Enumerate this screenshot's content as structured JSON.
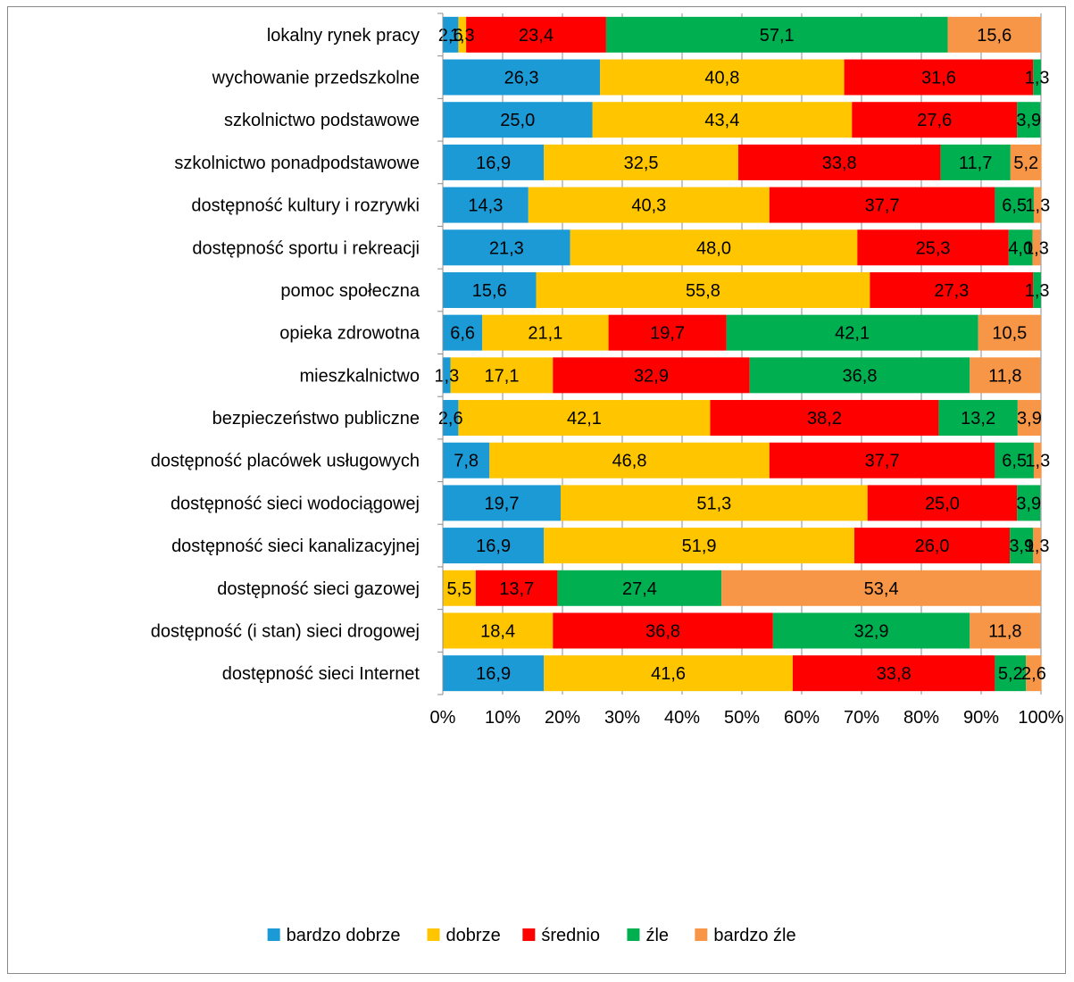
{
  "chart_data": {
    "type": "bar",
    "orientation": "horizontal",
    "stacked": true,
    "percent_stacked": true,
    "categories": [
      "lokalny rynek pracy",
      "wychowanie przedszkolne",
      "szkolnictwo podstawowe",
      "szkolnictwo ponadpodstawowe",
      "dostępność kultury i rozrywki",
      "dostępność sportu i rekreacji",
      "pomoc społeczna",
      "opieka zdrowotna",
      "mieszkalnictwo",
      "bezpieczeństwo publiczne",
      "dostępność placówek usługowych",
      "dostępność sieci wodociągowej",
      "dostępność sieci kanalizacyjnej",
      "dostępność sieci gazowej",
      "dostępność (i stan) sieci drogowej",
      "dostępność sieci Internet"
    ],
    "series": [
      {
        "name": "bardzo dobrze",
        "color": "#1b9ad6",
        "values": [
          2.6,
          26.3,
          25.0,
          16.9,
          14.3,
          21.3,
          15.6,
          6.6,
          1.3,
          2.6,
          7.8,
          19.7,
          16.9,
          0,
          0,
          16.9
        ],
        "labels": [
          "2,6",
          "26,3",
          "25,0",
          "16,9",
          "14,3",
          "21,3",
          "15,6",
          "6,6",
          "1,3",
          "2,6",
          "7,8",
          "19,7",
          "16,9",
          "",
          "",
          "16,9"
        ]
      },
      {
        "name": "dobrze",
        "color": "#ffc600",
        "values": [
          1.3,
          40.8,
          43.4,
          32.5,
          40.3,
          48.0,
          55.8,
          21.1,
          17.1,
          42.1,
          46.8,
          51.3,
          51.9,
          5.5,
          18.4,
          41.6
        ],
        "labels": [
          "1,3",
          "40,8",
          "43,4",
          "32,5",
          "40,3",
          "48,0",
          "55,8",
          "21,1",
          "17,1",
          "42,1",
          "46,8",
          "51,3",
          "51,9",
          "5,5",
          "18,4",
          "41,6"
        ]
      },
      {
        "name": "średnio",
        "color": "#ff0000",
        "values": [
          23.4,
          31.6,
          27.6,
          33.8,
          37.7,
          25.3,
          27.3,
          19.7,
          32.9,
          38.2,
          37.7,
          25.0,
          26.0,
          13.7,
          36.8,
          33.8
        ],
        "labels": [
          "23,4",
          "31,6",
          "27,6",
          "33,8",
          "37,7",
          "25,3",
          "27,3",
          "19,7",
          "32,9",
          "38,2",
          "37,7",
          "25,0",
          "26,0",
          "13,7",
          "36,8",
          "33,8"
        ]
      },
      {
        "name": "źle",
        "color": "#00b050",
        "values": [
          57.1,
          1.3,
          3.9,
          11.7,
          6.5,
          4.0,
          1.3,
          42.1,
          36.8,
          13.2,
          6.5,
          3.9,
          3.9,
          27.4,
          32.9,
          5.2
        ],
        "labels": [
          "57,1",
          "1,3",
          "3,9",
          "11,7",
          "6,5",
          "4,0",
          "1,3",
          "42,1",
          "36,8",
          "13,2",
          "6,5",
          "3,9",
          "3,9",
          "27,4",
          "32,9",
          "5,2"
        ]
      },
      {
        "name": "bardzo źle",
        "color": "#f79646",
        "values": [
          15.6,
          0,
          0,
          5.2,
          1.3,
          1.3,
          0,
          10.5,
          11.8,
          3.9,
          1.3,
          0,
          1.3,
          53.4,
          11.8,
          2.6
        ],
        "labels": [
          "15,6",
          "",
          "",
          "5,2",
          "1,3",
          "1,3",
          "",
          "10,5",
          "11,8",
          "3,9",
          "1,3",
          "",
          "1,3",
          "53,4",
          "11,8",
          "2,6"
        ]
      }
    ],
    "xlim": [
      0,
      100
    ],
    "xticks": [
      "0%",
      "10%",
      "20%",
      "30%",
      "40%",
      "50%",
      "60%",
      "70%",
      "80%",
      "90%",
      "100%"
    ],
    "grid": true,
    "legend_position": "bottom"
  }
}
